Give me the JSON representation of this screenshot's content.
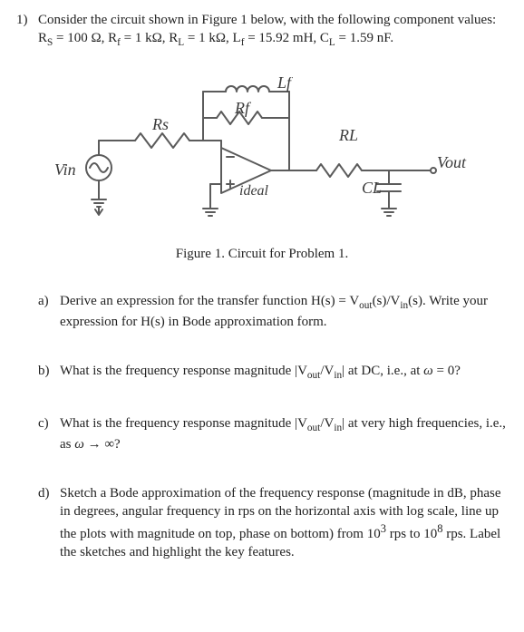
{
  "problem": {
    "number": "1)",
    "intro_html": "Consider the circuit shown in Figure 1 below, with the following component values: R<sub>S</sub> = 100 Ω, R<sub>f</sub> = 1 kΩ, R<sub>L</sub> = 1 kΩ, L<sub>f</sub> = 15.92 mH, C<sub>L</sub> = 1.59 nF."
  },
  "figure": {
    "caption": "Figure 1.  Circuit for Problem 1.",
    "labels": {
      "vin": "Vin",
      "rs": "Rs",
      "rf": "Rf",
      "lf": "Lf",
      "rl": "RL",
      "cl": "CL",
      "vout": "Vout",
      "ideal": "ideal"
    },
    "colors": {
      "stroke": "#5b5b5b",
      "text": "#3a3a3a",
      "bg": "#ffffff"
    }
  },
  "subparts": [
    {
      "label": "a)",
      "html": "Derive an expression for the transfer function H(s) = V<sub>out</sub>(s)/V<sub>in</sub>(s). Write your expression for H(s) in Bode approximation form."
    },
    {
      "label": "b)",
      "html": "What is the frequency response magnitude |V<sub>out</sub>/V<sub>in</sub>| at DC, i.e., at <i>ω</i> = 0?"
    },
    {
      "label": "c)",
      "html": "What is the frequency response magnitude |V<sub>out</sub>/V<sub>in</sub>| at very high frequencies, i.e., as <i>ω</i> → ∞?"
    },
    {
      "label": "d)",
      "html": "Sketch a Bode approximation of the frequency response (magnitude in dB, phase in degrees, angular frequency in rps on the horizontal axis with log scale, line up the plots with magnitude on top, phase on bottom) from 10<sup>3</sup> rps to 10<sup>8</sup> rps. Label the sketches and highlight the key features."
    }
  ]
}
